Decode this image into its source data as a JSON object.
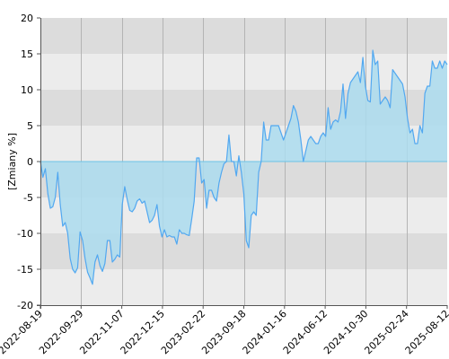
{
  "chart_data": {
    "type": "area",
    "title": "",
    "xlabel": "",
    "ylabel": "[Zmiany %]",
    "ylim": [
      -20,
      20
    ],
    "yticks": [
      -20,
      -15,
      -10,
      -5,
      0,
      5,
      10,
      15,
      20
    ],
    "xticks": [
      "2022-08-19",
      "2022-09-29",
      "2022-11-07",
      "2022-12-15",
      "2023-02-22",
      "2023-09-18",
      "2024-01-16",
      "2024-06-12",
      "2024-10-30",
      "2025-02-24",
      "2025-08-12"
    ],
    "grid": true,
    "colors": {
      "band_dark": "#dcdcdc",
      "band_light": "#ececec",
      "area_fill": "#abdcef",
      "line": "#52a8f0",
      "zero_line": "#6cc3e6",
      "vgrid": "#b4b4b4",
      "axis": "#555555"
    },
    "series": [
      {
        "values": [
          0,
          -2.2,
          -1,
          -4.5,
          -6.5,
          -6.3,
          -5,
          -1.5,
          -6,
          -9,
          -8.5,
          -10,
          -13.5,
          -15,
          -15.5,
          -14.8,
          -9.8,
          -11,
          -13.5,
          -15.4,
          -16.2,
          -17.1,
          -14,
          -13,
          -14.5,
          -15.3,
          -14.2,
          -11,
          -11,
          -14,
          -13.6,
          -13,
          -13.3,
          -6,
          -3.5,
          -5.3,
          -6.8,
          -7,
          -6.5,
          -5.5,
          -5.2,
          -5.8,
          -5.5,
          -7,
          -8.5,
          -8.2,
          -7.5,
          -6,
          -9,
          -10.5,
          -9.5,
          -10.5,
          -10.3,
          -10.5,
          -10.5,
          -11.5,
          -9.5,
          -10,
          -10,
          -10.2,
          -10.3,
          -8,
          -5.5,
          0.5,
          0.5,
          -3,
          -2.5,
          -6.5,
          -4,
          -4,
          -5,
          -5.5,
          -3,
          -1.5,
          -0.3,
          0,
          3.7,
          0,
          0,
          -2,
          0.8,
          -1.5,
          -4.5,
          -11,
          -12,
          -7.5,
          -7,
          -7.5,
          -1.5,
          0,
          5.5,
          3,
          3,
          5,
          5,
          5,
          5,
          4,
          3,
          4,
          5,
          6,
          7.8,
          7,
          5.5,
          3,
          0,
          1.5,
          3,
          3.5,
          3,
          2.5,
          2.5,
          3.5,
          4,
          3.5,
          7.5,
          4.5,
          5.5,
          5.8,
          5.5,
          7,
          10.8,
          6,
          9.5,
          11,
          11.5,
          12,
          12.5,
          11,
          14.5,
          10.5,
          8.5,
          8.3,
          15.5,
          13.5,
          14,
          8,
          8.5,
          9,
          8.5,
          7.5,
          12.8,
          12.3,
          11.8,
          11.3,
          10.8,
          9,
          6,
          4,
          4.5,
          2.5,
          2.5,
          5,
          4,
          9.5,
          10.5,
          10.5,
          14,
          13,
          13,
          14,
          13,
          14,
          13.5
        ]
      }
    ]
  }
}
